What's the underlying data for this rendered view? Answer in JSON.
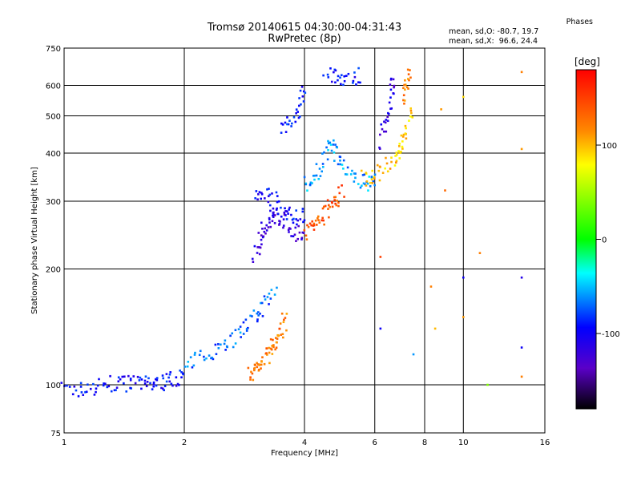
{
  "header": {
    "title_line1": "Tromsø 20140615 04:30:00-04:31:43",
    "title_line2": "RwPretec (8p)"
  },
  "phase_info": {
    "title": "Phases",
    "line_o": "mean, sd,O: -80.7, 19.7",
    "line_x": "mean, sd,X:  96.6, 24.4"
  },
  "colorbar": {
    "unit": "[deg]",
    "ticks": [
      {
        "value": 100,
        "label": "100"
      },
      {
        "value": 0,
        "label": "0"
      },
      {
        "value": -100,
        "label": "-100"
      }
    ],
    "range": [
      -180,
      180
    ]
  },
  "chart_data": {
    "type": "scatter",
    "title": "Tromsø 20140615 04:30:00-04:31:43",
    "subtitle": "RwPretec (8p)",
    "xlabel": "Frequency [MHz]",
    "ylabel": "Stationary phase Virtual Height [km]",
    "xscale": "log",
    "yscale": "log",
    "xlim": [
      1,
      16
    ],
    "ylim": [
      75,
      750
    ],
    "x_ticks": [
      1,
      2,
      4,
      6,
      8,
      10,
      16
    ],
    "y_ticks": [
      75,
      100,
      200,
      300,
      400,
      500,
      600,
      750
    ],
    "grid": true,
    "color_by": "phase (deg)",
    "traces": [
      {
        "x": [
          1.0,
          1.1,
          1.2,
          1.3,
          1.4,
          1.5,
          1.6,
          1.7,
          1.8,
          1.9,
          2.0
        ],
        "y": [
          97,
          97,
          99,
          100,
          101,
          101,
          100,
          101,
          102,
          104,
          106
        ],
        "phase": -95
      },
      {
        "x": [
          2.0,
          2.2,
          2.4,
          2.6,
          2.8,
          3.0,
          3.2,
          3.4
        ],
        "y": [
          110,
          118,
          125,
          130,
          140,
          150,
          160,
          175
        ],
        "phase": -70
      },
      {
        "x": [
          2.9,
          3.0,
          3.1,
          3.2,
          3.3,
          3.4,
          3.5,
          3.6
        ],
        "y": [
          106,
          110,
          114,
          118,
          124,
          130,
          138,
          150
        ],
        "phase": 125
      },
      {
        "x": [
          3.0,
          3.1,
          3.2,
          3.3,
          3.4,
          3.6,
          3.8,
          4.0
        ],
        "y": [
          210,
          240,
          260,
          270,
          275,
          265,
          250,
          240
        ],
        "phase": -120
      },
      {
        "x": [
          3.0,
          3.2,
          3.4,
          3.6,
          3.8,
          4.0
        ],
        "y": [
          300,
          320,
          300,
          280,
          270,
          280
        ],
        "phase": -95
      },
      {
        "x": [
          4.0,
          4.2,
          4.4,
          4.6,
          4.8,
          5.0
        ],
        "y": [
          250,
          260,
          270,
          285,
          300,
          320
        ],
        "phase": 140
      },
      {
        "x": [
          4.0,
          4.2,
          4.4,
          4.6,
          4.8,
          5.0,
          5.4,
          5.8,
          6.0
        ],
        "y": [
          330,
          340,
          370,
          420,
          400,
          370,
          340,
          335,
          345
        ],
        "phase": -60
      },
      {
        "x": [
          5.6,
          6.0,
          6.4,
          6.8,
          7.0,
          7.2,
          7.4
        ],
        "y": [
          345,
          350,
          365,
          390,
          420,
          460,
          520
        ],
        "phase": 95
      },
      {
        "x": [
          6.2,
          6.4,
          6.6,
          6.7
        ],
        "y": [
          420,
          500,
          560,
          640
        ],
        "phase": -115
      },
      {
        "x": [
          3.5,
          3.7,
          3.9,
          4.0
        ],
        "y": [
          460,
          480,
          520,
          600
        ],
        "phase": -90
      },
      {
        "x": [
          4.5,
          4.8,
          5.2,
          5.5
        ],
        "y": [
          640,
          632,
          630,
          635
        ],
        "phase": -95
      },
      {
        "x": [
          7.0,
          7.2,
          7.4
        ],
        "y": [
          560,
          600,
          640
        ],
        "phase": 120
      }
    ],
    "scatter_points": [
      {
        "x": 8.3,
        "y": 180,
        "phase": 120
      },
      {
        "x": 8.5,
        "y": 140,
        "phase": 100
      },
      {
        "x": 8.8,
        "y": 520,
        "phase": 110
      },
      {
        "x": 9.0,
        "y": 320,
        "phase": 130
      },
      {
        "x": 10.0,
        "y": 560,
        "phase": 90
      },
      {
        "x": 10.0,
        "y": 190,
        "phase": -100
      },
      {
        "x": 10.0,
        "y": 150,
        "phase": 110
      },
      {
        "x": 11.0,
        "y": 220,
        "phase": 120
      },
      {
        "x": 11.5,
        "y": 100,
        "phase": 40
      },
      {
        "x": 14.0,
        "y": 650,
        "phase": 120
      },
      {
        "x": 14.0,
        "y": 410,
        "phase": 110
      },
      {
        "x": 14.0,
        "y": 190,
        "phase": -110
      },
      {
        "x": 14.0,
        "y": 125,
        "phase": -100
      },
      {
        "x": 14.0,
        "y": 105,
        "phase": 120
      },
      {
        "x": 7.5,
        "y": 120,
        "phase": -60
      },
      {
        "x": 6.2,
        "y": 215,
        "phase": 150
      },
      {
        "x": 6.2,
        "y": 140,
        "phase": -100
      }
    ]
  }
}
